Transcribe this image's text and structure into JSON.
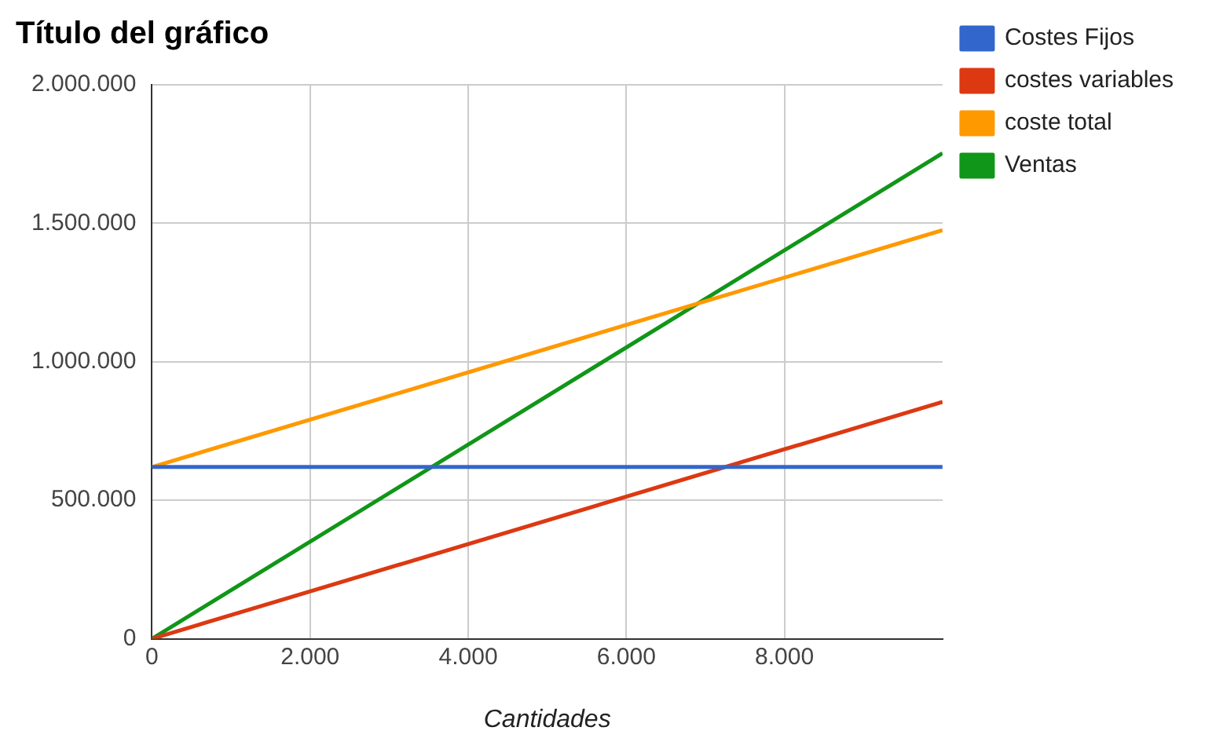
{
  "chart_data": {
    "type": "line",
    "title": "Título del gráfico",
    "xlabel": "Cantidades",
    "x": [
      0,
      10000
    ],
    "series": [
      {
        "name": "Costes Fijos",
        "color": "#3366cc",
        "values": [
          620000,
          620000
        ]
      },
      {
        "name": "costes variables",
        "color": "#dc3912",
        "values": [
          0,
          855000
        ]
      },
      {
        "name": "coste total",
        "color": "#ff9900",
        "values": [
          620000,
          1475000
        ]
      },
      {
        "name": "Ventas",
        "color": "#109618",
        "values": [
          0,
          1753000
        ]
      }
    ],
    "xlim": [
      0,
      10000
    ],
    "xticks": [
      0,
      {
        "value": 2000,
        "label": "2.000"
      },
      {
        "value": 4000,
        "label": "4.000"
      },
      {
        "value": 6000,
        "label": "6.000"
      },
      {
        "value": 8000,
        "label": "8.000"
      }
    ],
    "ylim": [
      0,
      2000000
    ],
    "yticks": [
      0,
      {
        "value": 500000,
        "label": "500.000"
      },
      {
        "value": 1000000,
        "label": "1.000.000"
      },
      {
        "value": 1500000,
        "label": "1.500.000"
      },
      {
        "value": 2000000,
        "label": "2.000.000"
      }
    ],
    "grid": true,
    "legend": "right",
    "marker": "none",
    "line_style": "solid"
  }
}
